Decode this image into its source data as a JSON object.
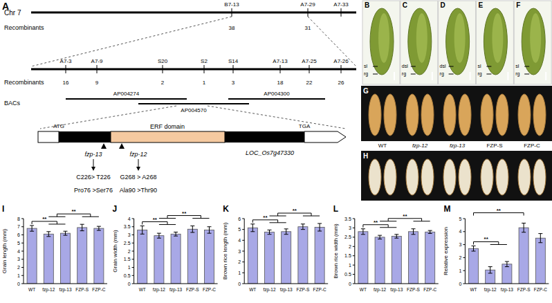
{
  "panel_a": {
    "label": "A",
    "chromosome": "Chr 7",
    "recombinants_label": "Recombinants",
    "bacs_label": "BACs",
    "top_markers": [
      {
        "name": "B7-13",
        "recombinants": 38
      },
      {
        "name": "A7-29",
        "recombinants": 31
      },
      {
        "name": "A7-33",
        "recombinants": null
      }
    ],
    "fine_markers": [
      {
        "name": "A7-3",
        "recombinants": 16
      },
      {
        "name": "A7-9",
        "recombinants": 9
      },
      {
        "name": "S20",
        "recombinants": 2
      },
      {
        "name": "S2",
        "recombinants": 1
      },
      {
        "name": "S14",
        "recombinants": 3
      },
      {
        "name": "A7-13",
        "recombinants": 18
      },
      {
        "name": "A7-25",
        "recombinants": 22
      },
      {
        "name": "A7-26",
        "recombinants": 26
      }
    ],
    "bacs": [
      "AP004274",
      "AP004570",
      "AP004300"
    ],
    "gene": {
      "start": "ATG",
      "stop": "TGA",
      "domain": "ERF domain",
      "locus": "LOC_Os7g47330",
      "mutations": [
        {
          "allele": "fzp-13",
          "nucleotide": "C226> T226",
          "amino_acid": "Pro76 >Ser76"
        },
        {
          "allele": "fzp-12",
          "nucleotide": "G268 > A268",
          "amino_acid": "Ala90 >Thr90"
        }
      ]
    }
  },
  "photos": {
    "spikelets": [
      {
        "label": "B",
        "annotations": [
          "sl",
          "rg"
        ]
      },
      {
        "label": "C",
        "annotations": [
          "dsl",
          "rg"
        ]
      },
      {
        "label": "D",
        "annotations": [
          "dsl",
          "rg"
        ]
      },
      {
        "label": "E",
        "annotations": [
          "sl",
          "rg"
        ]
      },
      {
        "label": "F",
        "annotations": [
          "sl",
          "rg"
        ]
      }
    ],
    "grain_panels": [
      "G",
      "H"
    ],
    "genotypes": [
      "WT",
      "fzp-12",
      "fzp-13",
      "FZP-S",
      "FZP-C"
    ]
  },
  "chart_data": [
    {
      "type": "bar",
      "title": "I",
      "y_label": "Grain length (mm)",
      "categories": [
        "WT",
        "fzp-12",
        "fzp-13",
        "FZP-S",
        "FZP-C"
      ],
      "values": [
        6.8,
        6.1,
        6.2,
        6.9,
        6.8
      ],
      "errors": [
        0.35,
        0.3,
        0.25,
        0.4,
        0.25
      ],
      "color": "#a8a8e6",
      "ylim": [
        0,
        8
      ],
      "yticks": [
        0,
        1,
        2,
        3,
        4,
        5,
        6,
        7,
        8
      ],
      "annotations": [
        {
          "text": "**",
          "groups": [
            [
              0
            ],
            [
              1,
              2
            ]
          ]
        },
        {
          "text": "**",
          "groups": [
            [
              1,
              2
            ],
            [
              3,
              4
            ]
          ]
        }
      ]
    },
    {
      "type": "bar",
      "title": "J",
      "y_label": "Grain width (mm)",
      "categories": [
        "WT",
        "fzp-12",
        "fzp-13",
        "FZP-S",
        "FZP-C"
      ],
      "values": [
        3.3,
        2.95,
        3.05,
        3.35,
        3.3
      ],
      "errors": [
        0.25,
        0.15,
        0.12,
        0.2,
        0.2
      ],
      "color": "#a8a8e6",
      "ylim": [
        0,
        4
      ],
      "yticks": [
        0,
        0.5,
        1,
        1.5,
        2,
        2.5,
        3,
        3.5,
        4
      ],
      "annotations": [
        {
          "text": "**",
          "groups": [
            [
              0
            ],
            [
              1,
              2
            ]
          ]
        },
        {
          "text": "**",
          "groups": [
            [
              1,
              2
            ],
            [
              3,
              4
            ]
          ]
        }
      ]
    },
    {
      "type": "bar",
      "title": "K",
      "y_label": "Brown rice length (mm)",
      "categories": [
        "WT",
        "fzp-12",
        "fzp-13",
        "FZP-S",
        "FZP-C"
      ],
      "values": [
        5.15,
        4.75,
        4.8,
        5.25,
        5.2
      ],
      "errors": [
        0.35,
        0.2,
        0.25,
        0.25,
        0.35
      ],
      "color": "#a8a8e6",
      "ylim": [
        0,
        6
      ],
      "yticks": [
        0,
        1,
        2,
        3,
        4,
        5,
        6
      ],
      "annotations": [
        {
          "text": "**",
          "groups": [
            [
              0
            ],
            [
              1,
              2
            ]
          ]
        },
        {
          "text": "**",
          "groups": [
            [
              1,
              2
            ],
            [
              3,
              4
            ]
          ]
        }
      ]
    },
    {
      "type": "bar",
      "title": "L",
      "y_label": "Brown rice width (mm)",
      "categories": [
        "WT",
        "fzp-12",
        "fzp-13",
        "FZP-S",
        "FZP-C"
      ],
      "values": [
        2.8,
        2.5,
        2.55,
        2.8,
        2.78
      ],
      "errors": [
        0.15,
        0.1,
        0.1,
        0.15,
        0.08
      ],
      "color": "#a8a8e6",
      "ylim": [
        0,
        3.5
      ],
      "yticks": [
        0,
        0.5,
        1,
        1.5,
        2,
        2.5,
        3,
        3.5
      ],
      "annotations": [
        {
          "text": "**",
          "groups": [
            [
              0
            ],
            [
              1,
              2
            ]
          ]
        },
        {
          "text": "**",
          "groups": [
            [
              1,
              2
            ],
            [
              3,
              4
            ]
          ]
        }
      ]
    },
    {
      "type": "bar",
      "title": "M",
      "y_label": "Relative expression",
      "categories": [
        "WT",
        "fzp-12",
        "fzp-13",
        "FZP-S",
        "FZP-C"
      ],
      "values": [
        2.7,
        1.05,
        1.5,
        4.3,
        3.5
      ],
      "errors": [
        0.2,
        0.25,
        0.2,
        0.35,
        0.35
      ],
      "color": "#a8a8e6",
      "ylim": [
        0,
        5
      ],
      "yticks": [
        0,
        1,
        2,
        3,
        4,
        5
      ],
      "annotations": [
        {
          "text": "**",
          "groups": [
            [
              0
            ],
            [
              1,
              2
            ]
          ]
        },
        {
          "text": "**",
          "groups": [
            [
              0
            ],
            [
              3
            ]
          ]
        }
      ]
    }
  ]
}
